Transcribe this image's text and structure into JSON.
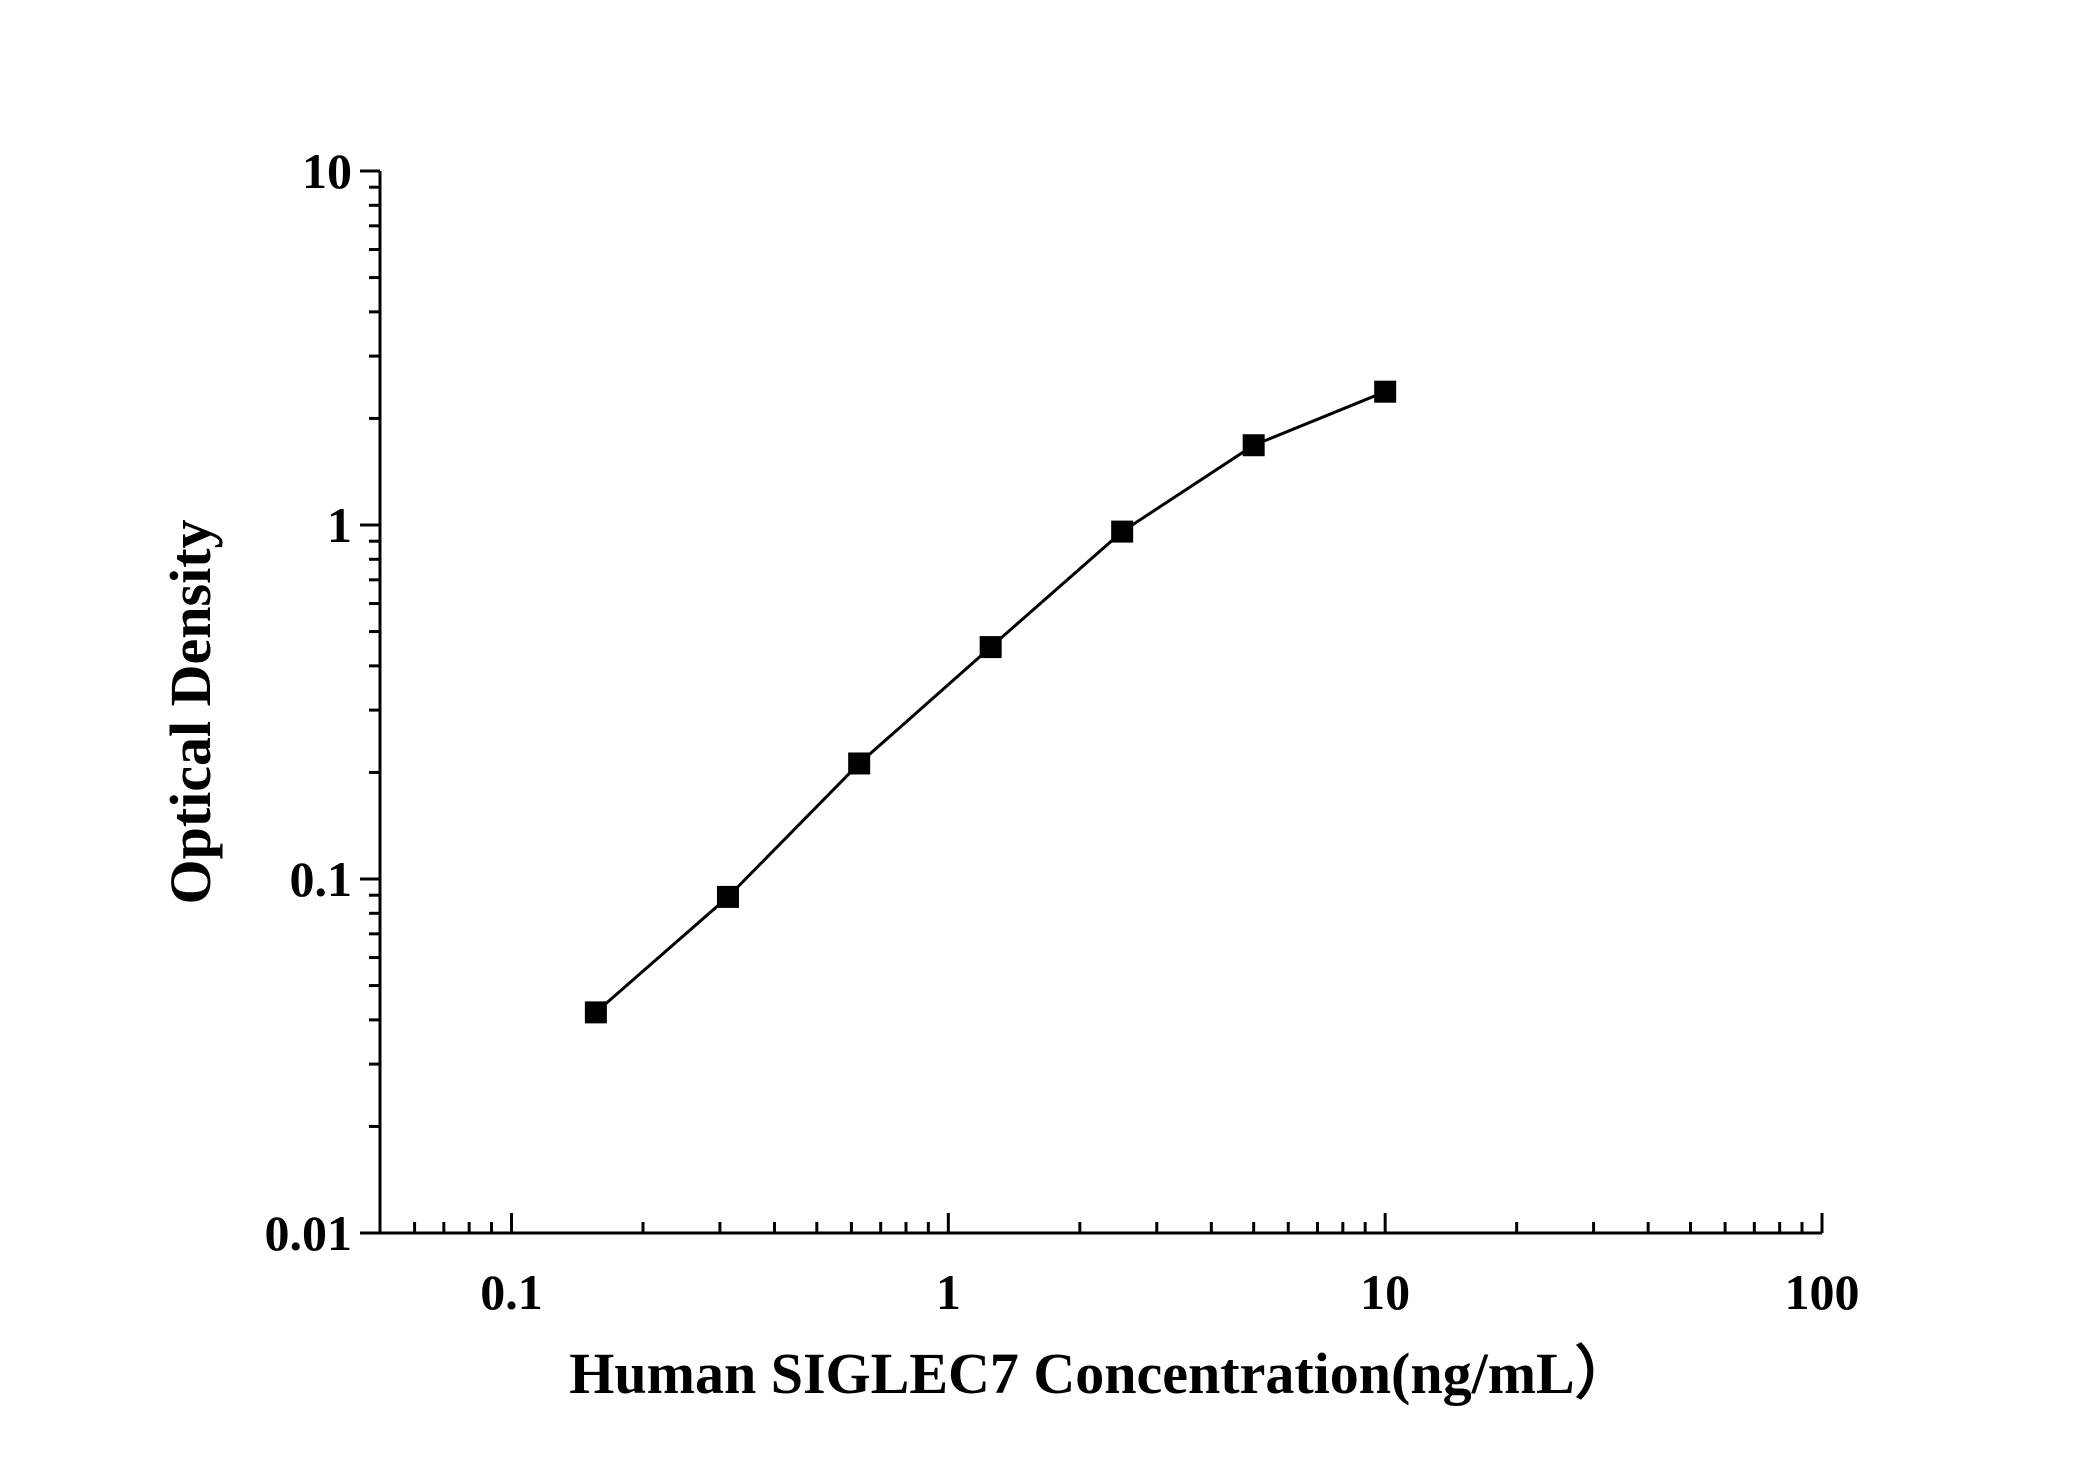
{
  "chart_data": {
    "type": "line",
    "title": "",
    "xlabel": "Human SIGLEC7  Concentration(ng/mL）",
    "ylabel": "Optical Density",
    "x_scale": "log",
    "y_scale": "log",
    "xlim": [
      0.05,
      100
    ],
    "ylim": [
      0.01,
      10
    ],
    "x_ticks": [
      {
        "value": 0.1,
        "label": "0.1"
      },
      {
        "value": 1,
        "label": "1"
      },
      {
        "value": 10,
        "label": "10"
      },
      {
        "value": 100,
        "label": "100"
      }
    ],
    "y_ticks": [
      {
        "value": 0.01,
        "label": "0.01"
      },
      {
        "value": 0.1,
        "label": "0.1"
      },
      {
        "value": 1,
        "label": "1"
      },
      {
        "value": 10,
        "label": "10"
      }
    ],
    "grid": false,
    "legend": "none",
    "marker": "square",
    "color": "#000000",
    "series": [
      {
        "x": [
          0.156,
          0.313,
          0.625,
          1.25,
          2.5,
          5,
          10
        ],
        "y": [
          0.042,
          0.089,
          0.212,
          0.452,
          0.958,
          1.68,
          2.38
        ]
      }
    ]
  }
}
